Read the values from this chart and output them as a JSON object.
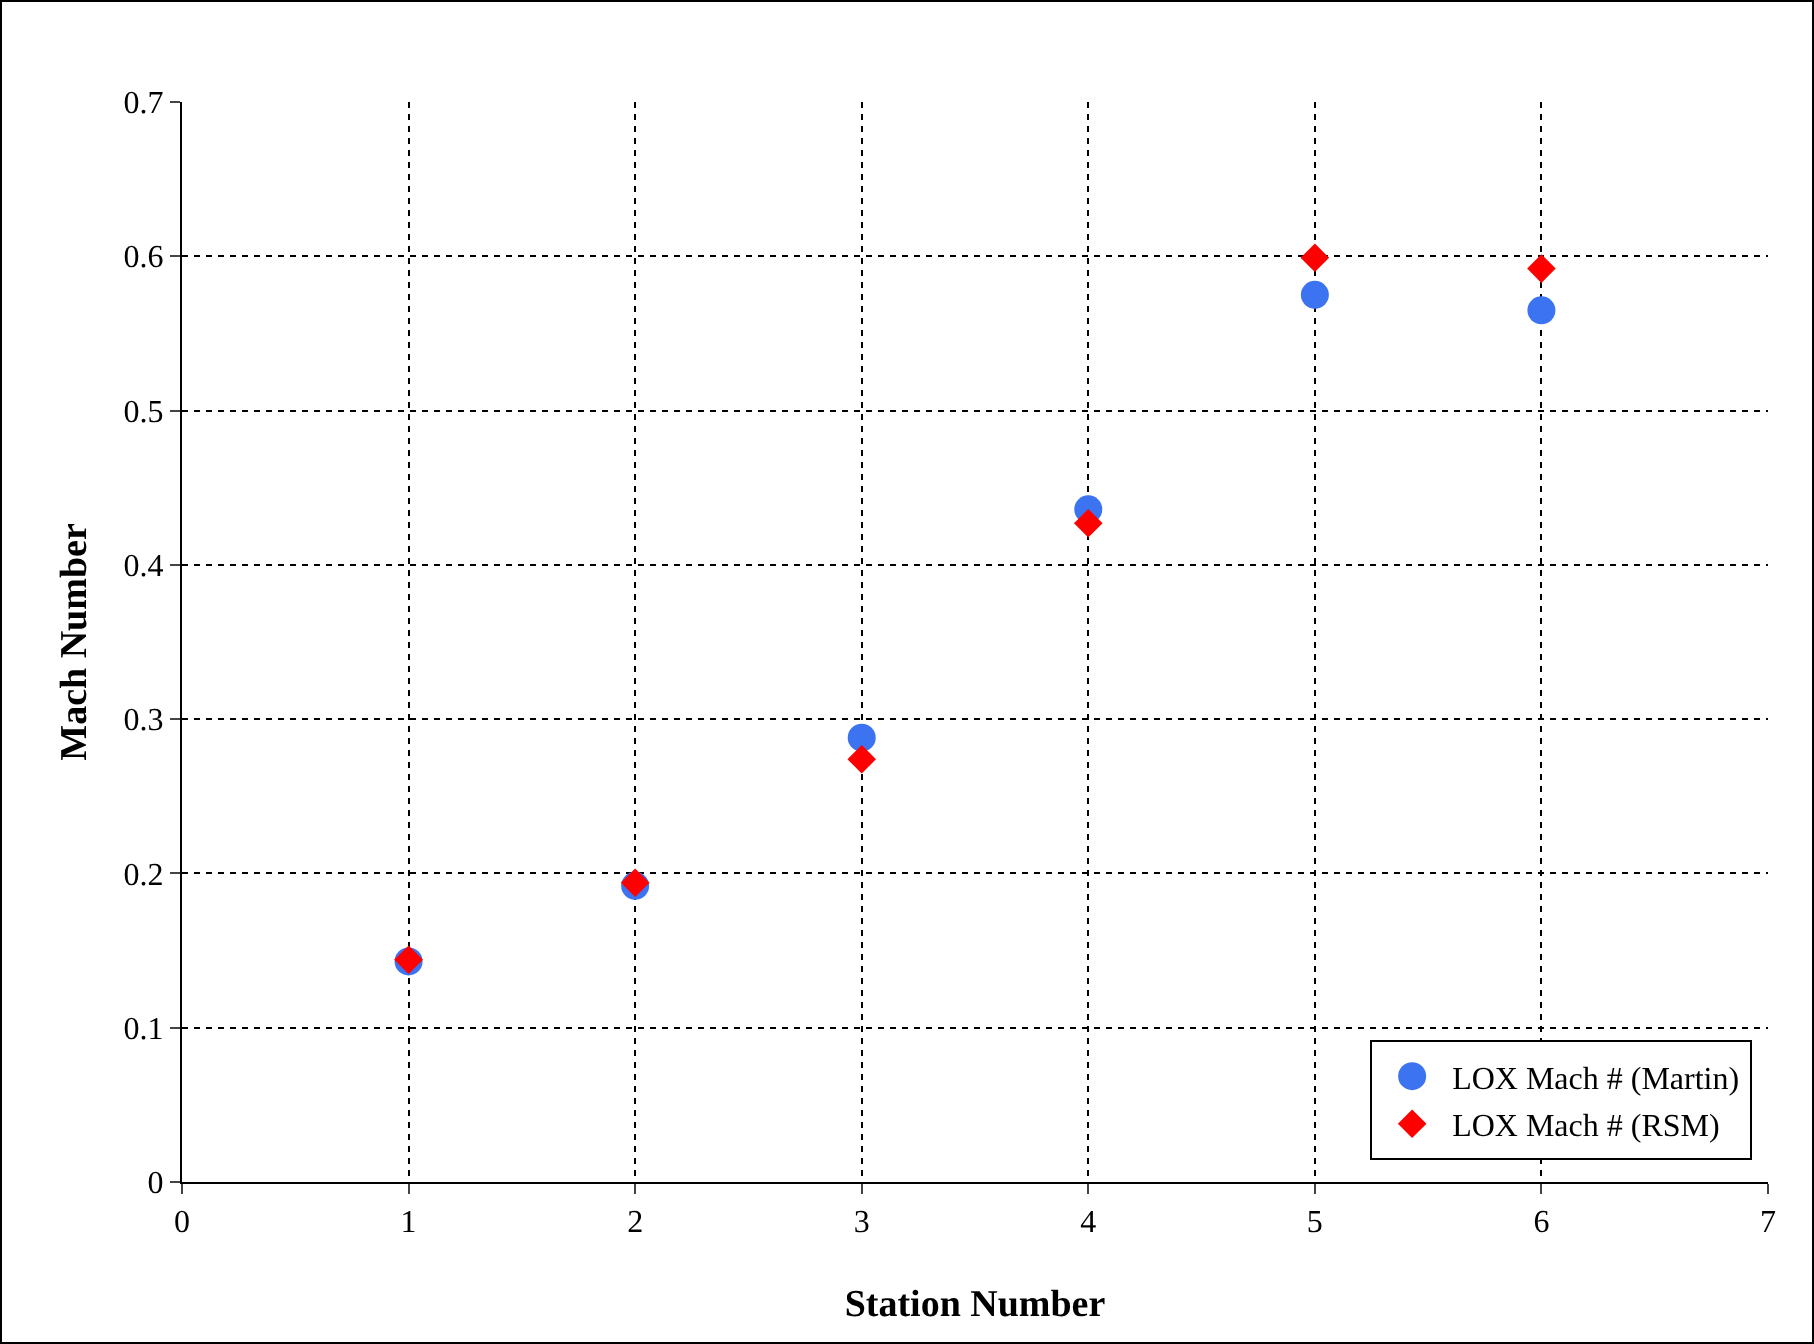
{
  "chart_data": {
    "type": "scatter",
    "xlabel": "Station Number",
    "ylabel": "Mach Number",
    "x": [
      1,
      2,
      3,
      4,
      5,
      6
    ],
    "series": [
      {
        "name": "LOX Mach # (Martin)",
        "color": "#3b73f0",
        "marker": "circle",
        "values": [
          0.143,
          0.192,
          0.288,
          0.436,
          0.575,
          0.565
        ]
      },
      {
        "name": "LOX Mach # (RSM)",
        "color": "#ff0000",
        "marker": "diamond",
        "values": [
          0.144,
          0.194,
          0.274,
          0.427,
          0.599,
          0.592
        ]
      }
    ],
    "xlim": [
      0,
      7
    ],
    "xticks": [
      0,
      1,
      2,
      3,
      4,
      5,
      6,
      7
    ],
    "ylim": [
      0,
      0.7
    ],
    "yticks": [
      0,
      0.1,
      0.2,
      0.3,
      0.4,
      0.5,
      0.6,
      0.7
    ],
    "grid": true,
    "legend": "bottom right"
  }
}
